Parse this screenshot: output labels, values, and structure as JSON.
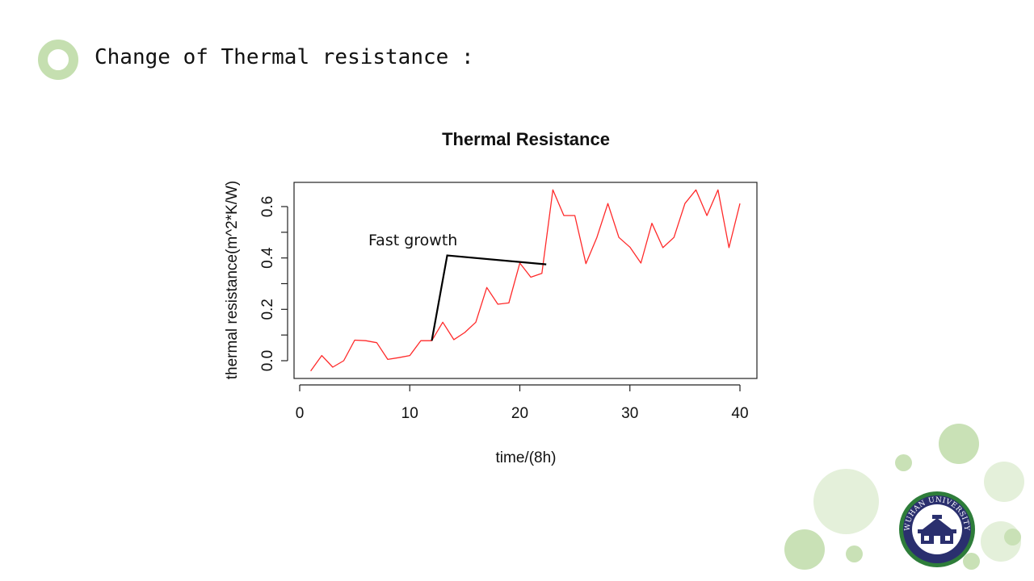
{
  "slide": {
    "title": "Change of Thermal resistance :"
  },
  "colors": {
    "accent_ring": "#c5dfb0",
    "series_line": "#ff2a2a",
    "annotation_line": "#000000",
    "deco_light": "#e4f0da",
    "deco_mid": "#c9e1b6",
    "logo_navy": "#2a2f6e",
    "logo_green": "#2e7d3a"
  },
  "chart_data": {
    "type": "line",
    "title": "Thermal Resistance",
    "xlabel": "time/(8h)",
    "ylabel": "thermal resistance(m^2*K/W)",
    "xlim": [
      0,
      41
    ],
    "ylim": [
      -0.07,
      0.69
    ],
    "xticks": [
      0,
      10,
      20,
      30,
      40
    ],
    "yticks": [
      0.0,
      0.2,
      0.4,
      0.6
    ],
    "ytick_labels": [
      "0.0",
      "0.2",
      "0.4",
      "0.6"
    ],
    "grid": false,
    "x": [
      1,
      2,
      3,
      4,
      5,
      6,
      7,
      8,
      9,
      10,
      11,
      12,
      13,
      14,
      15,
      16,
      17,
      18,
      19,
      20,
      21,
      22,
      23,
      24,
      25,
      26,
      27,
      28,
      29,
      30,
      31,
      32,
      33,
      34,
      35,
      36,
      37,
      38,
      39,
      40
    ],
    "values": [
      -0.04,
      0.02,
      -0.025,
      0.0,
      0.08,
      0.078,
      0.07,
      0.005,
      0.012,
      0.02,
      0.078,
      0.078,
      0.15,
      0.082,
      0.11,
      0.15,
      0.285,
      0.22,
      0.225,
      0.38,
      0.325,
      0.34,
      0.665,
      0.565,
      0.565,
      0.378,
      0.48,
      0.612,
      0.48,
      0.442,
      0.38,
      0.535,
      0.44,
      0.48,
      0.612,
      0.665,
      0.565,
      0.665,
      0.44,
      0.612
    ],
    "annotation": {
      "text": "Fast growth",
      "points": [
        [
          12,
          0.078
        ],
        [
          13.4,
          0.41
        ],
        [
          22.4,
          0.375
        ]
      ]
    }
  },
  "logo": {
    "text": "WUHAN UNIVERSITY"
  }
}
